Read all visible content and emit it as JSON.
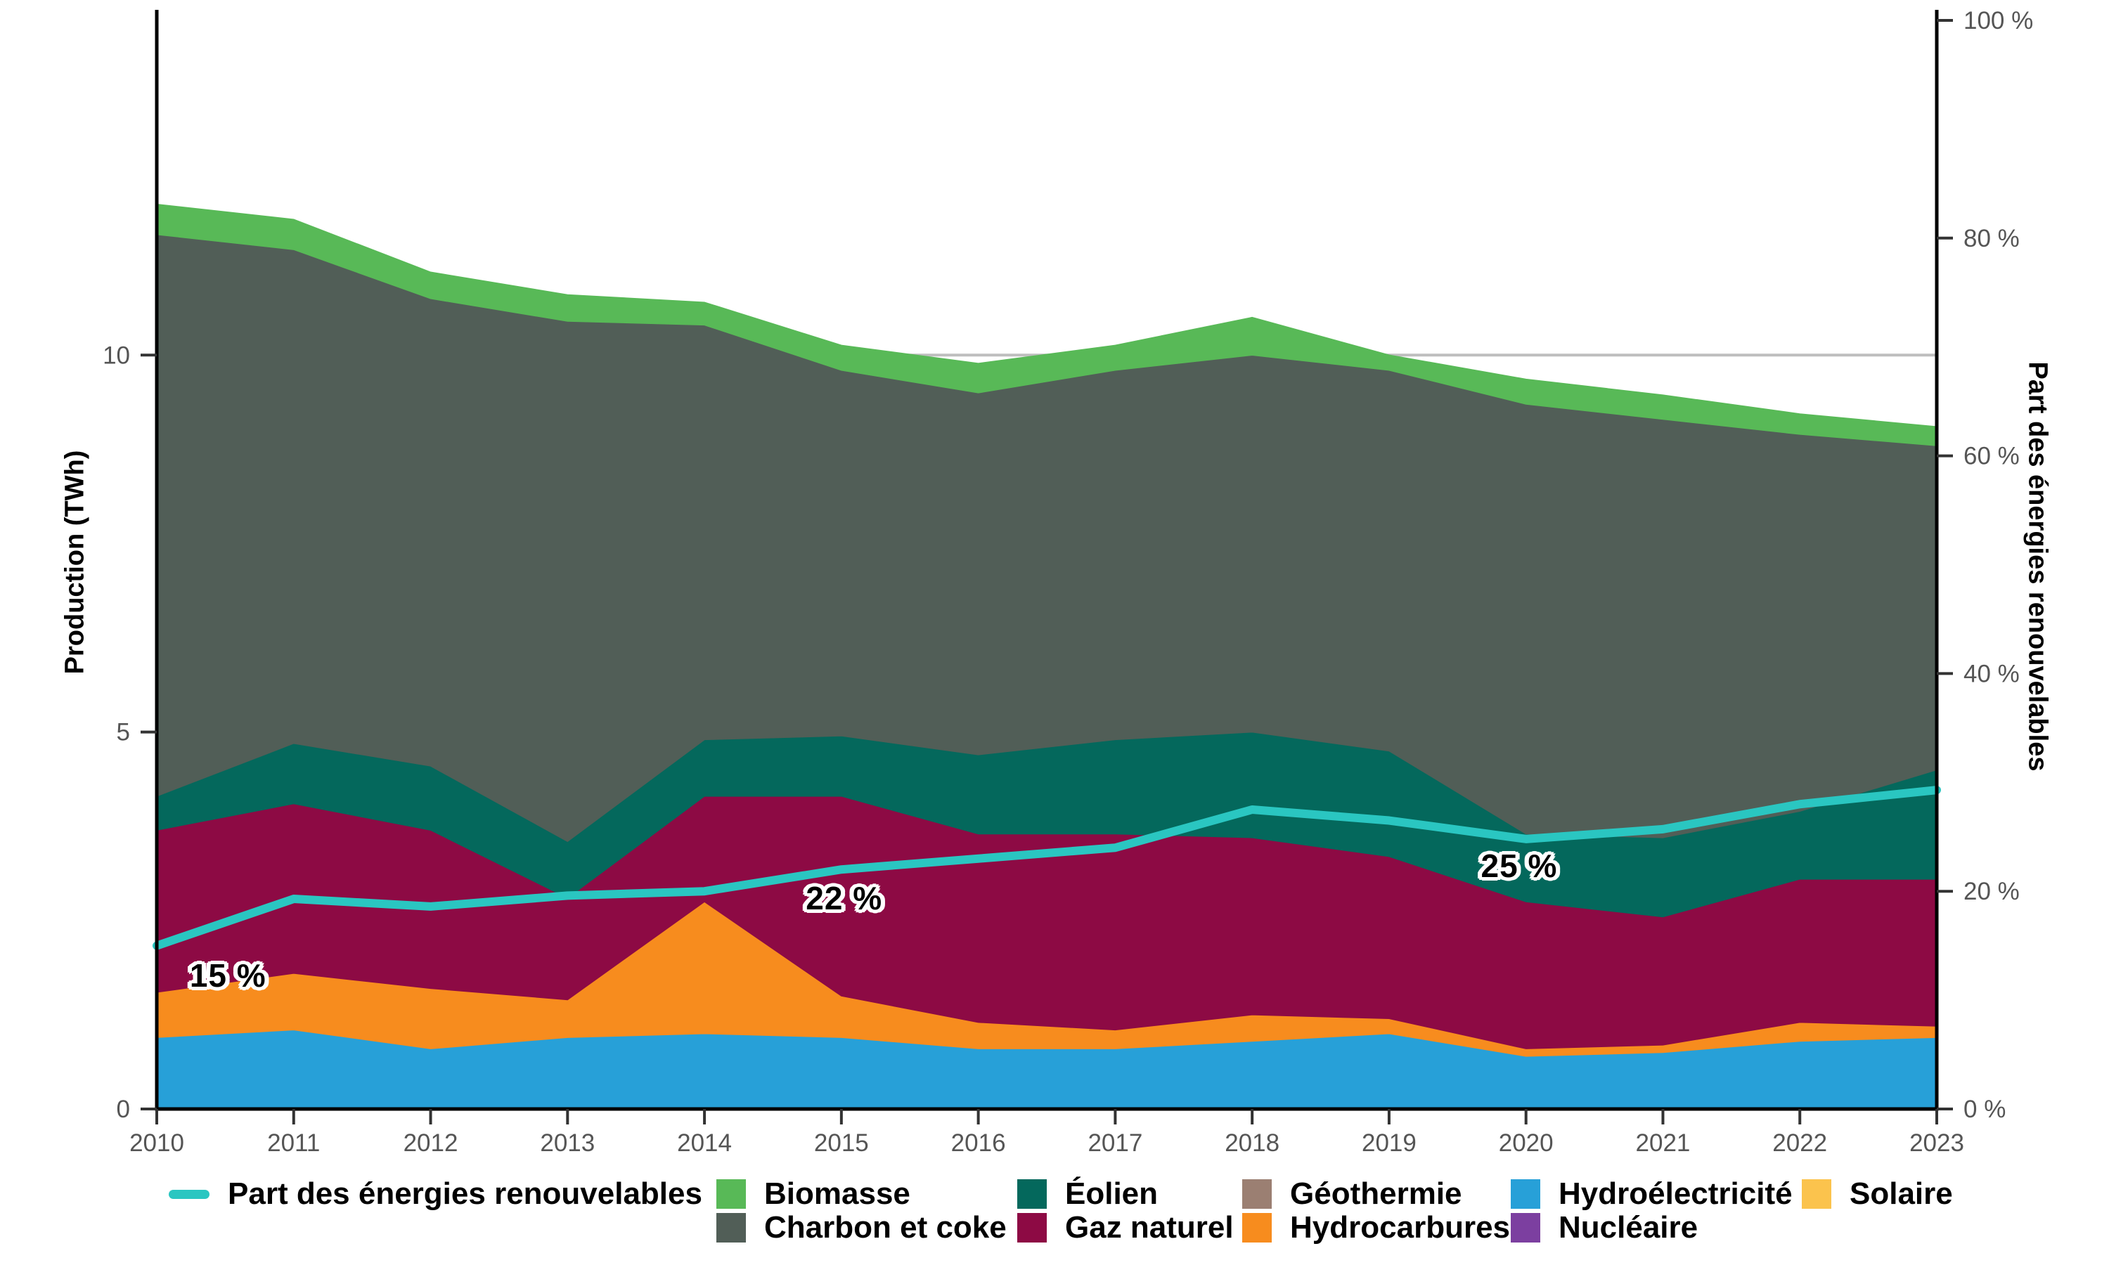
{
  "axes": {
    "left_title": "Production (TWh)",
    "right_title": "Part des énergies renouvelables",
    "left_ticks": [
      {
        "label": "0",
        "value": 0
      },
      {
        "label": "5",
        "value": 5
      },
      {
        "label": "10",
        "value": 10
      }
    ],
    "right_ticks": [
      {
        "label": "0 %",
        "value": 0
      },
      {
        "label": "20 %",
        "value": 20
      },
      {
        "label": "40 %",
        "value": 40
      },
      {
        "label": "60 %",
        "value": 60
      },
      {
        "label": "80 %",
        "value": 80
      },
      {
        "label": "100 %",
        "value": 100
      }
    ],
    "x_ticks": [
      {
        "label": "2010",
        "value": 2010
      },
      {
        "label": "2011",
        "value": 2011
      },
      {
        "label": "2012",
        "value": 2012
      },
      {
        "label": "2013",
        "value": 2013
      },
      {
        "label": "2014",
        "value": 2014
      },
      {
        "label": "2015",
        "value": 2015
      },
      {
        "label": "2016",
        "value": 2016
      },
      {
        "label": "2017",
        "value": 2017
      },
      {
        "label": "2018",
        "value": 2018
      },
      {
        "label": "2019",
        "value": 2019
      },
      {
        "label": "2020",
        "value": 2020
      },
      {
        "label": "2021",
        "value": 2021
      },
      {
        "label": "2022",
        "value": 2022
      },
      {
        "label": "2023",
        "value": 2023
      }
    ]
  },
  "colors": {
    "gridline": "#BEBEBE",
    "axis": "#000000",
    "tick_mark": "#333333",
    "tick_text": "#555555",
    "annotation_halo": "#FFFFFF"
  },
  "chart_data": {
    "type": "area",
    "stacked": true,
    "grid": "horizontal-major-only",
    "legend_position": "bottom",
    "x": [
      2010,
      2011,
      2012,
      2013,
      2014,
      2015,
      2016,
      2017,
      2018,
      2019,
      2020,
      2021,
      2022,
      2023
    ],
    "ylim_left": [
      0,
      14.44
    ],
    "ylim_right": [
      0,
      100
    ],
    "gridlines_left": [
      5,
      10
    ],
    "xlabel": "",
    "ylabel_left": "Production (TWh)",
    "ylabel_right": "Part des énergies renouvelables",
    "series": [
      {
        "id": "solaire",
        "name": "Solaire",
        "color": "#FBC34D",
        "values": [
          0,
          0,
          0,
          0,
          0,
          0,
          0,
          0,
          0,
          0,
          0,
          0,
          0,
          0
        ]
      },
      {
        "id": "nucleaire",
        "name": "Nucléaire",
        "color": "#7C3FA0",
        "values": [
          0,
          0,
          0,
          0,
          0,
          0,
          0,
          0,
          0,
          0,
          0,
          0,
          0,
          0
        ]
      },
      {
        "id": "hydroelectricite",
        "name": "Hydroélectricité",
        "color": "#27A0D8",
        "values": [
          0.95,
          1.05,
          0.8,
          0.95,
          1.0,
          0.95,
          0.8,
          0.8,
          0.9,
          1.0,
          0.7,
          0.75,
          0.9,
          0.95
        ]
      },
      {
        "id": "hydrocarbures",
        "name": "Hydrocarbures",
        "color": "#F78C1E",
        "values": [
          0.6,
          0.75,
          0.8,
          0.5,
          1.75,
          0.55,
          0.35,
          0.25,
          0.35,
          0.2,
          0.1,
          0.1,
          0.25,
          0.15
        ]
      },
      {
        "id": "geothermie",
        "name": "Géothermie",
        "color": "#9B7F72",
        "values": [
          0,
          0,
          0,
          0,
          0,
          0,
          0,
          0,
          0,
          0,
          0,
          0,
          0,
          0
        ]
      },
      {
        "id": "gaz-naturel",
        "name": "Gaz naturel",
        "color": "#8D0A44",
        "values": [
          2.15,
          2.25,
          2.1,
          1.35,
          1.4,
          2.65,
          2.5,
          2.6,
          2.35,
          2.15,
          1.95,
          1.7,
          1.9,
          1.95
        ]
      },
      {
        "id": "eolien",
        "name": "Éolien",
        "color": "#04685C",
        "values": [
          0.45,
          0.8,
          0.85,
          0.75,
          0.75,
          0.8,
          1.05,
          1.25,
          1.4,
          1.4,
          0.9,
          1.05,
          0.9,
          1.45
        ]
      },
      {
        "id": "charbon-et-coke",
        "name": "Charbon et coke",
        "color": "#515E57",
        "values": [
          7.45,
          6.55,
          6.2,
          6.9,
          5.5,
          4.85,
          4.8,
          4.9,
          5.0,
          5.05,
          5.7,
          5.55,
          5.0,
          4.3
        ]
      },
      {
        "id": "biomasse",
        "name": "Biomasse",
        "color": "#58B957",
        "values": [
          0.4,
          0.4,
          0.35,
          0.35,
          0.3,
          0.33,
          0.39,
          0.33,
          0.5,
          0.2,
          0.33,
          0.32,
          0.27,
          0.25
        ]
      }
    ],
    "line_series": {
      "id": "part-energies-renouvelables",
      "name": "Part des énergies renouvelables",
      "color": "#2AC6C1",
      "axis": "right",
      "values": [
        15.0,
        19.3,
        18.6,
        19.6,
        20.0,
        22.0,
        23.0,
        24.0,
        27.5,
        26.5,
        24.8,
        25.7,
        28.0,
        29.3
      ]
    },
    "annotations": [
      {
        "text": "15 %",
        "year": 2010.52,
        "twh": 1.77
      },
      {
        "text": "22 %",
        "year": 2015.02,
        "twh": 2.8
      },
      {
        "text": "25 %",
        "year": 2019.95,
        "twh": 3.23
      }
    ]
  },
  "legend": {
    "items": [
      {
        "label": "Part des énergies renouvelables",
        "color": "#2AC6C1",
        "type": "line",
        "row": 0,
        "col": 0
      },
      {
        "label": "Biomasse",
        "color": "#58B957",
        "type": "box",
        "row": 0,
        "col": 1
      },
      {
        "label": "Charbon et coke",
        "color": "#515E57",
        "type": "box",
        "row": 1,
        "col": 1
      },
      {
        "label": "Éolien",
        "color": "#04685C",
        "type": "box",
        "row": 0,
        "col": 2
      },
      {
        "label": "Gaz naturel",
        "color": "#8D0A44",
        "type": "box",
        "row": 1,
        "col": 2
      },
      {
        "label": "Géothermie",
        "color": "#9B7F72",
        "type": "box",
        "row": 0,
        "col": 3
      },
      {
        "label": "Hydrocarbures",
        "color": "#F78C1E",
        "type": "box",
        "row": 1,
        "col": 3
      },
      {
        "label": "Hydroélectricité",
        "color": "#27A0D8",
        "type": "box",
        "row": 0,
        "col": 4
      },
      {
        "label": "Nucléaire",
        "color": "#7C3FA0",
        "type": "box",
        "row": 1,
        "col": 4
      },
      {
        "label": "Solaire",
        "color": "#FBC34D",
        "type": "box",
        "row": 0,
        "col": 5
      }
    ]
  }
}
